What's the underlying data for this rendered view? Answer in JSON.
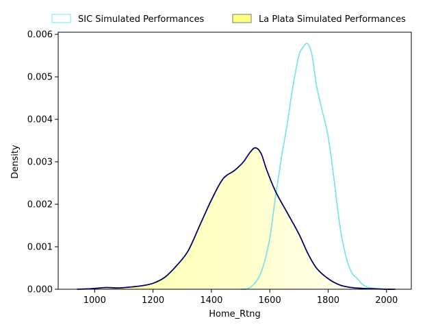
{
  "chart_data": {
    "type": "area",
    "title": "",
    "xlabel": "Home_Rtng",
    "ylabel": "Density",
    "xlim": [
      875,
      2085
    ],
    "ylim": [
      0,
      0.00605
    ],
    "xticks": [
      1000,
      1200,
      1400,
      1600,
      1800,
      2000
    ],
    "yticks": [
      0.0,
      0.001,
      0.002,
      0.003,
      0.004,
      0.005,
      0.006
    ],
    "ytick_labels": [
      "0.000",
      "0.001",
      "0.002",
      "0.003",
      "0.004",
      "0.005",
      "0.006"
    ],
    "grid": false,
    "legend": {
      "placement": "top-outside",
      "columns": 2
    },
    "series": [
      {
        "name": "SIC Simulated Performances",
        "style": "line",
        "color": "#7fe4ea",
        "x": [
          1500,
          1530,
          1560,
          1580,
          1600,
          1620,
          1640,
          1660,
          1680,
          1700,
          1715,
          1730,
          1745,
          1760,
          1780,
          1800,
          1820,
          1840,
          1860,
          1880,
          1900,
          1920,
          1940,
          1960,
          1980,
          2000,
          2020
        ],
        "y": [
          0.0,
          3e-05,
          0.00025,
          0.0006,
          0.0012,
          0.0022,
          0.0031,
          0.0039,
          0.0048,
          0.0055,
          0.0057,
          0.00578,
          0.0055,
          0.0048,
          0.0042,
          0.0036,
          0.0026,
          0.0015,
          0.0008,
          0.0004,
          0.00025,
          0.0001,
          4e-05,
          2e-05,
          1e-05,
          0.0,
          0.0
        ]
      },
      {
        "name": "La Plata Simulated Performances",
        "style": "filled",
        "color": "#000066",
        "fill": "#ffff99",
        "x": [
          940,
          980,
          1000,
          1040,
          1080,
          1120,
          1160,
          1200,
          1240,
          1280,
          1320,
          1360,
          1400,
          1440,
          1480,
          1510,
          1530,
          1550,
          1570,
          1590,
          1620,
          1660,
          1700,
          1730,
          1760,
          1800,
          1840,
          1880,
          1920,
          1960,
          2000,
          2030
        ],
        "y": [
          0.0,
          1e-05,
          2e-05,
          4e-05,
          3e-05,
          5e-05,
          8e-05,
          0.00014,
          0.00028,
          0.00055,
          0.0009,
          0.0015,
          0.0021,
          0.0026,
          0.0028,
          0.003,
          0.0032,
          0.00333,
          0.0032,
          0.0028,
          0.0023,
          0.0018,
          0.0013,
          0.00085,
          0.0005,
          0.00025,
          0.0001,
          4e-05,
          2e-05,
          1e-05,
          0.0,
          0.0
        ]
      }
    ]
  }
}
